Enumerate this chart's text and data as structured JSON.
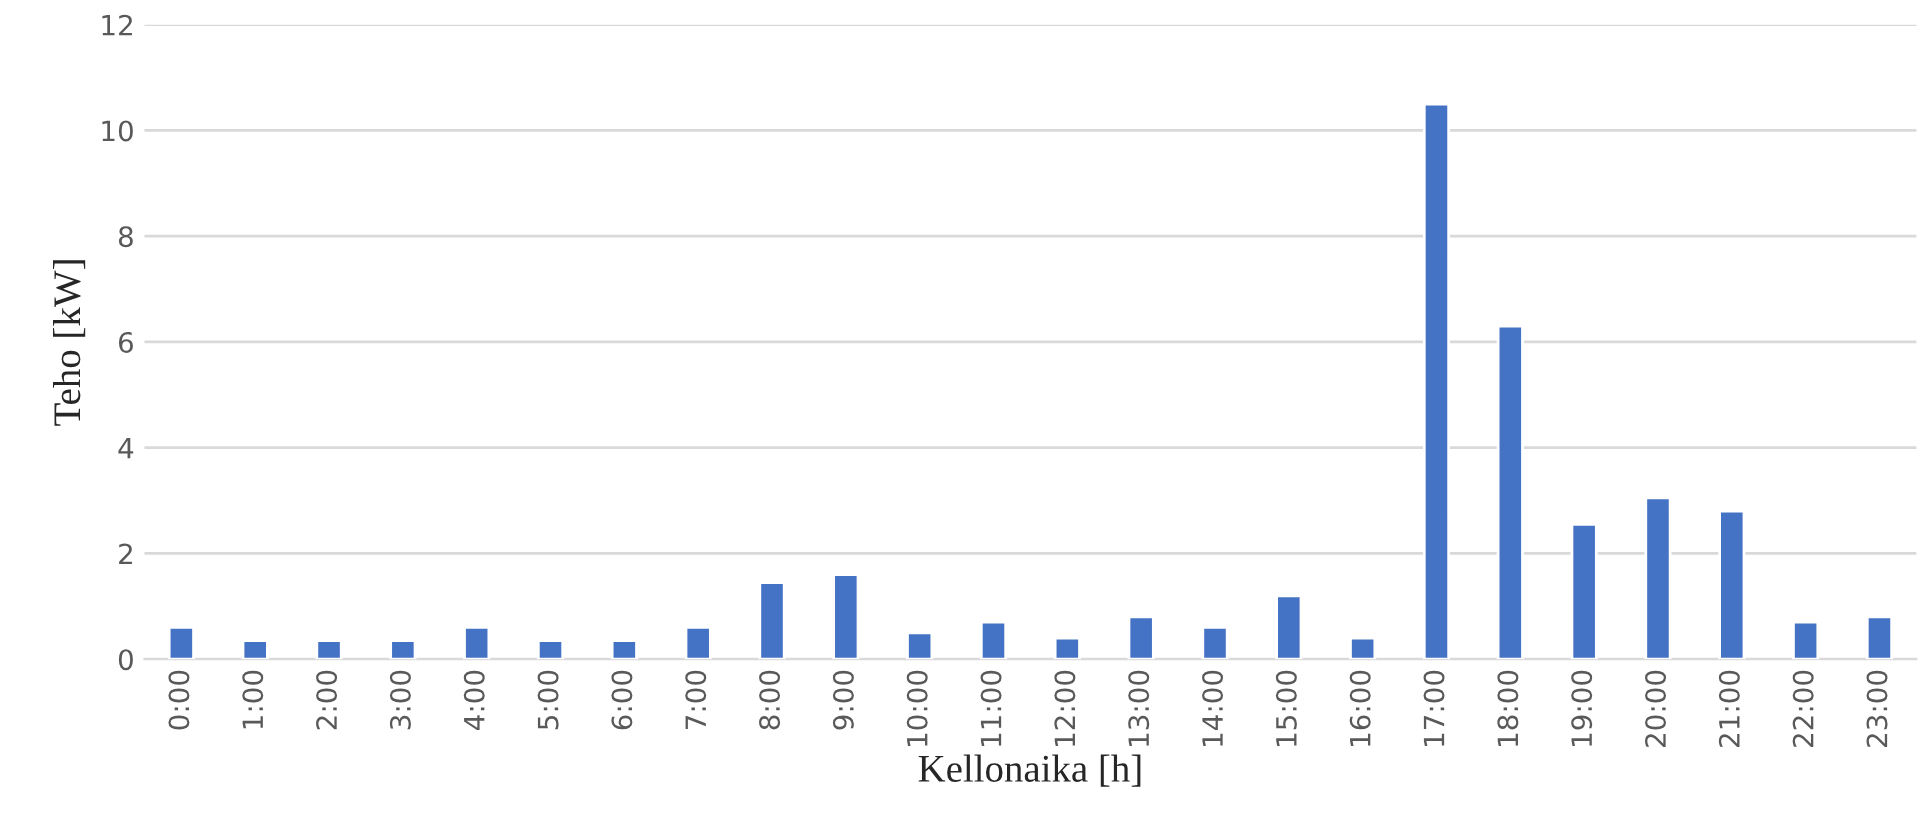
{
  "chart_data": {
    "type": "bar",
    "xlabel": "Kellonaika [h]",
    "ylabel": "Teho [kW]",
    "categories": [
      "0:00",
      "1:00",
      "2:00",
      "3:00",
      "4:00",
      "5:00",
      "6:00",
      "7:00",
      "8:00",
      "9:00",
      "10:00",
      "11:00",
      "12:00",
      "13:00",
      "14:00",
      "15:00",
      "16:00",
      "17:00",
      "18:00",
      "19:00",
      "20:00",
      "21:00",
      "22:00",
      "23:00"
    ],
    "values": [
      0.6,
      0.35,
      0.35,
      0.35,
      0.6,
      0.35,
      0.35,
      0.6,
      1.45,
      1.6,
      0.5,
      0.7,
      0.4,
      0.8,
      0.6,
      1.2,
      0.4,
      10.5,
      6.3,
      2.55,
      3.05,
      2.8,
      0.7,
      0.8
    ],
    "color": "#4472c4",
    "ylim": [
      0,
      12
    ],
    "yticks": [
      0,
      2,
      4,
      6,
      8,
      10,
      12
    ],
    "grid": "y",
    "legend": false
  }
}
